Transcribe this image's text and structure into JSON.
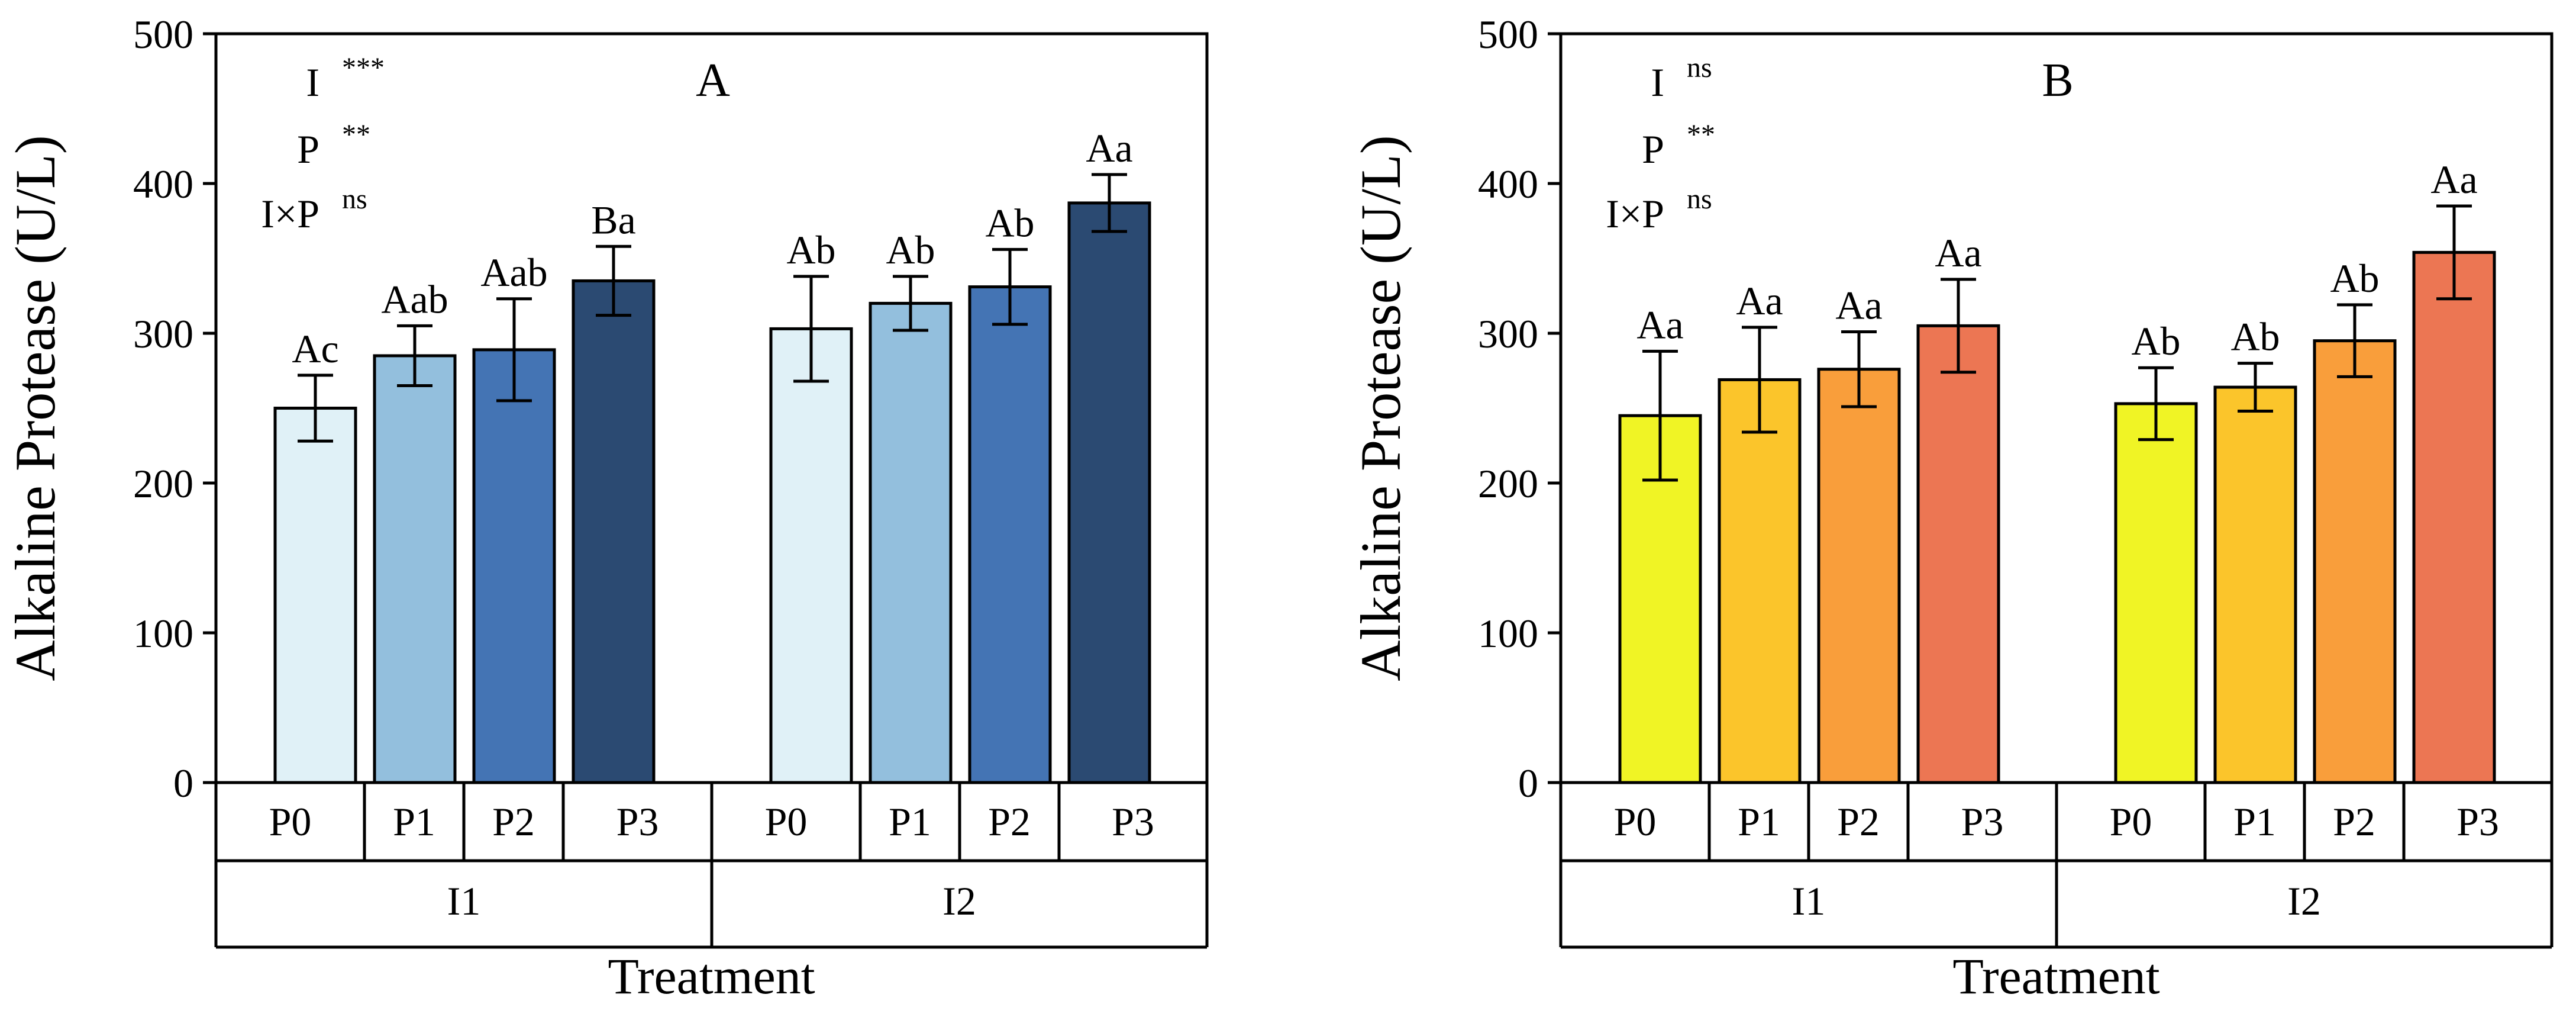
{
  "chart_data": [
    {
      "type": "bar",
      "panel_label": "A",
      "ylabel": "Alkaline Protease (U/L)",
      "xlabel": "Treatment",
      "ylim": [
        0,
        500
      ],
      "yticks": [
        0,
        100,
        200,
        300,
        400,
        500
      ],
      "groups": [
        "I1",
        "I2"
      ],
      "categories": [
        "P0",
        "P1",
        "P2",
        "P3"
      ],
      "colors": [
        "#e0f1f7",
        "#93bfdd",
        "#4474b4",
        "#2b4a72"
      ],
      "series": [
        {
          "name": "I1",
          "values": [
            250,
            285,
            289,
            335
          ],
          "errors": [
            22,
            20,
            34,
            23
          ],
          "letters": [
            "Ac",
            "Aab",
            "Aab",
            "Ba"
          ]
        },
        {
          "name": "I2",
          "values": [
            303,
            320,
            331,
            387
          ],
          "errors": [
            35,
            18,
            25,
            19
          ],
          "letters": [
            "Ab",
            "Ab",
            "Ab",
            "Aa"
          ]
        }
      ],
      "stats": [
        {
          "label": "I",
          "sig": "***"
        },
        {
          "label": "P",
          "sig": "**"
        },
        {
          "label": "I×P",
          "sig": "ns"
        }
      ]
    },
    {
      "type": "bar",
      "panel_label": "B",
      "ylabel": "Alkaline Protease (U/L)",
      "xlabel": "Treatment",
      "ylim": [
        0,
        500
      ],
      "yticks": [
        0,
        100,
        200,
        300,
        400,
        500
      ],
      "groups": [
        "I1",
        "I2"
      ],
      "categories": [
        "P0",
        "P1",
        "P2",
        "P3"
      ],
      "colors": [
        "#f0f425",
        "#fbc52b",
        "#f99e3b",
        "#ec7653"
      ],
      "series": [
        {
          "name": "I1",
          "values": [
            245,
            269,
            276,
            305
          ],
          "errors": [
            43,
            35,
            25,
            31
          ],
          "letters": [
            "Aa",
            "Aa",
            "Aa",
            "Aa"
          ]
        },
        {
          "name": "I2",
          "values": [
            253,
            264,
            295,
            354
          ],
          "errors": [
            24,
            16,
            24,
            31
          ],
          "letters": [
            "Ab",
            "Ab",
            "Ab",
            "Aa"
          ]
        }
      ],
      "stats": [
        {
          "label": "I",
          "sig": "ns"
        },
        {
          "label": "P",
          "sig": "**"
        },
        {
          "label": "I×P",
          "sig": "ns"
        }
      ]
    }
  ]
}
